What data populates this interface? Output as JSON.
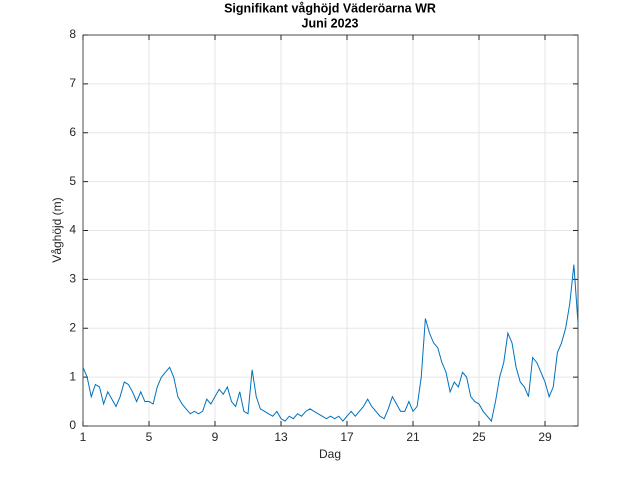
{
  "chart_data": {
    "type": "line",
    "title": "Signifikant våghöjd Väderöarna WR",
    "subtitle": "Juni 2023",
    "xlabel": "Dag",
    "ylabel": "Våghöjd (m)",
    "xlim": [
      1,
      31
    ],
    "ylim": [
      0,
      8
    ],
    "xticks": [
      1,
      5,
      9,
      13,
      17,
      21,
      25,
      29
    ],
    "yticks": [
      0,
      1,
      2,
      3,
      4,
      5,
      6,
      7,
      8
    ],
    "grid": true,
    "x": [
      1,
      1.25,
      1.5,
      1.75,
      2,
      2.25,
      2.5,
      2.75,
      3,
      3.25,
      3.5,
      3.75,
      4,
      4.25,
      4.5,
      4.75,
      5,
      5.25,
      5.5,
      5.75,
      6,
      6.25,
      6.5,
      6.75,
      7,
      7.25,
      7.5,
      7.75,
      8,
      8.25,
      8.5,
      8.75,
      9,
      9.25,
      9.5,
      9.75,
      10,
      10.25,
      10.5,
      10.75,
      11,
      11.25,
      11.5,
      11.75,
      12,
      12.25,
      12.5,
      12.75,
      13,
      13.25,
      13.5,
      13.75,
      14,
      14.25,
      14.5,
      14.75,
      15,
      15.25,
      15.5,
      15.75,
      16,
      16.25,
      16.5,
      16.75,
      17,
      17.25,
      17.5,
      17.75,
      18,
      18.25,
      18.5,
      18.75,
      19,
      19.25,
      19.5,
      19.75,
      20,
      20.25,
      20.5,
      20.75,
      21,
      21.25,
      21.5,
      21.75,
      22,
      22.25,
      22.5,
      22.75,
      23,
      23.25,
      23.5,
      23.75,
      24,
      24.25,
      24.5,
      24.75,
      25,
      25.25,
      25.5,
      25.75,
      26,
      26.25,
      26.5,
      26.75,
      27,
      27.25,
      27.5,
      27.75,
      28,
      28.25,
      28.5,
      28.75,
      29,
      29.25,
      29.5,
      29.75,
      30,
      30.25,
      30.5,
      30.75,
      31
    ],
    "series": [
      {
        "color": "#0072bd",
        "values": [
          1.2,
          1.0,
          0.6,
          0.85,
          0.8,
          0.45,
          0.7,
          0.55,
          0.4,
          0.6,
          0.9,
          0.85,
          0.7,
          0.5,
          0.7,
          0.5,
          0.5,
          0.45,
          0.8,
          1.0,
          1.1,
          1.2,
          1.0,
          0.6,
          0.45,
          0.35,
          0.25,
          0.3,
          0.25,
          0.3,
          0.55,
          0.45,
          0.6,
          0.75,
          0.65,
          0.8,
          0.5,
          0.4,
          0.7,
          0.3,
          0.25,
          1.15,
          0.6,
          0.35,
          0.3,
          0.25,
          0.2,
          0.3,
          0.15,
          0.1,
          0.2,
          0.15,
          0.25,
          0.2,
          0.3,
          0.35,
          0.3,
          0.25,
          0.2,
          0.15,
          0.2,
          0.15,
          0.2,
          0.1,
          0.2,
          0.3,
          0.2,
          0.3,
          0.4,
          0.55,
          0.4,
          0.3,
          0.2,
          0.15,
          0.35,
          0.6,
          0.45,
          0.3,
          0.3,
          0.5,
          0.3,
          0.4,
          1.0,
          2.2,
          1.9,
          1.7,
          1.6,
          1.3,
          1.1,
          0.7,
          0.9,
          0.8,
          1.1,
          1.0,
          0.6,
          0.5,
          0.45,
          0.3,
          0.2,
          0.1,
          0.5,
          1.0,
          1.3,
          1.9,
          1.7,
          1.2,
          0.9,
          0.8,
          0.6,
          1.4,
          1.3,
          1.1,
          0.9,
          0.6,
          0.8,
          1.5,
          1.7,
          2.0,
          2.5,
          3.3,
          2.1
        ]
      }
    ]
  }
}
